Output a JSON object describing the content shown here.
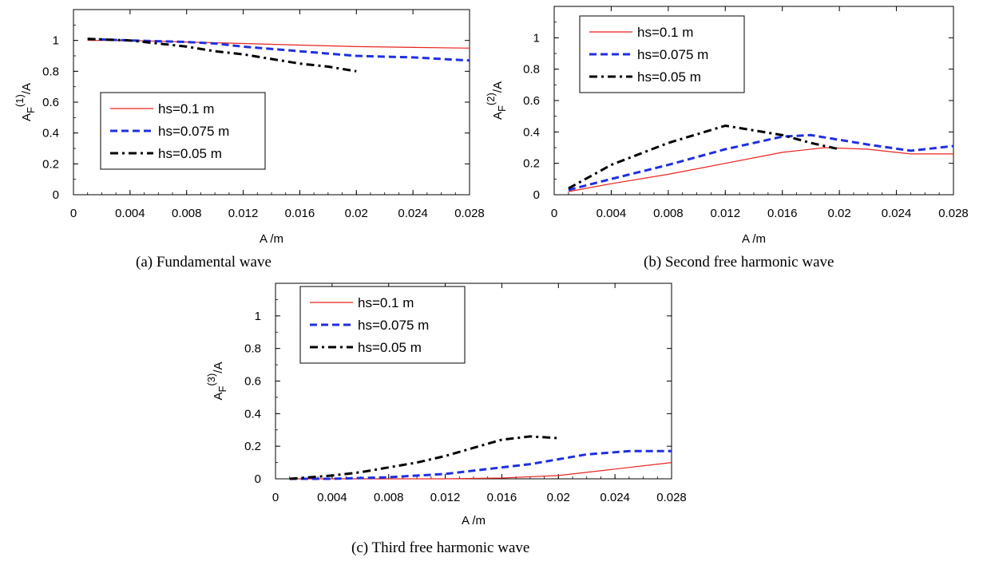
{
  "chart_data": [
    {
      "type": "line",
      "caption": "(a)   Fundamental wave",
      "xlabel": "A /m",
      "ylabel": {
        "main": "A",
        "sub": "F",
        "sup": "(1)",
        "tail": "/A"
      },
      "xlim": [
        0,
        0.028
      ],
      "ylim": [
        0,
        1.2
      ],
      "xticks": [
        "0",
        "0.004",
        "0.008",
        "0.012",
        "0.016",
        "0.02",
        "0.024",
        "0.028"
      ],
      "yticks": [
        "0",
        "0.2",
        "0.4",
        "0.6",
        "0.8",
        "1"
      ],
      "grid": false,
      "legend_position": "middle-left",
      "series": [
        {
          "name": "hs=0.1 m",
          "color": "#e8231f",
          "style": "solid",
          "x": [
            0.001,
            0.004,
            0.008,
            0.012,
            0.016,
            0.02,
            0.024,
            0.028
          ],
          "y": [
            1.0,
            1.0,
            0.99,
            0.98,
            0.97,
            0.96,
            0.955,
            0.95
          ]
        },
        {
          "name": "hs=0.075 m",
          "color": "#1f2fe0",
          "style": "dashed",
          "x": [
            0.001,
            0.004,
            0.008,
            0.01,
            0.012,
            0.016,
            0.02,
            0.024,
            0.028
          ],
          "y": [
            1.01,
            1.0,
            0.99,
            0.98,
            0.96,
            0.93,
            0.9,
            0.89,
            0.87
          ]
        },
        {
          "name": "hs=0.05 m",
          "color": "#000000",
          "style": "dashdot",
          "x": [
            0.001,
            0.004,
            0.006,
            0.008,
            0.01,
            0.012,
            0.014,
            0.016,
            0.018,
            0.02
          ],
          "y": [
            1.01,
            1.0,
            0.98,
            0.96,
            0.93,
            0.91,
            0.88,
            0.85,
            0.83,
            0.8
          ]
        }
      ]
    },
    {
      "type": "line",
      "caption": "(b) Second free harmonic wave",
      "xlabel": "A /m",
      "ylabel": {
        "main": "A",
        "sub": "F",
        "sup": "(2)",
        "tail": "/A"
      },
      "xlim": [
        0,
        0.028
      ],
      "ylim": [
        0,
        1.2
      ],
      "xticks": [
        "0",
        "0.004",
        "0.008",
        "0.012",
        "0.016",
        "0.02",
        "0.024",
        "0.028"
      ],
      "yticks": [
        "0",
        "0.2",
        "0.4",
        "0.6",
        "0.8",
        "1"
      ],
      "grid": false,
      "legend_position": "top-left",
      "series": [
        {
          "name": "hs=0.1 m",
          "color": "#e8231f",
          "style": "solid",
          "x": [
            0.001,
            0.004,
            0.008,
            0.012,
            0.016,
            0.019,
            0.022,
            0.025,
            0.028
          ],
          "y": [
            0.02,
            0.07,
            0.13,
            0.2,
            0.27,
            0.3,
            0.29,
            0.26,
            0.26
          ]
        },
        {
          "name": "hs=0.075 m",
          "color": "#1f2fe0",
          "style": "dashed",
          "x": [
            0.001,
            0.004,
            0.008,
            0.012,
            0.016,
            0.018,
            0.02,
            0.022,
            0.025,
            0.028
          ],
          "y": [
            0.03,
            0.1,
            0.19,
            0.29,
            0.37,
            0.38,
            0.35,
            0.32,
            0.28,
            0.31
          ]
        },
        {
          "name": "hs=0.05 m",
          "color": "#000000",
          "style": "dashdot",
          "x": [
            0.001,
            0.004,
            0.008,
            0.012,
            0.016,
            0.018,
            0.02
          ],
          "y": [
            0.04,
            0.19,
            0.33,
            0.44,
            0.38,
            0.33,
            0.29
          ]
        }
      ]
    },
    {
      "type": "line",
      "caption": "(c) Third free harmonic wave",
      "xlabel": "A /m",
      "ylabel": {
        "main": "A",
        "sub": "F",
        "sup": "(3)",
        "tail": "/A"
      },
      "xlim": [
        0,
        0.028
      ],
      "ylim": [
        0,
        1.2
      ],
      "xticks": [
        "0",
        "0.004",
        "0.008",
        "0.012",
        "0.016",
        "0.02",
        "0.024",
        "0.028"
      ],
      "yticks": [
        "0",
        "0.2",
        "0.4",
        "0.6",
        "0.8",
        "1"
      ],
      "grid": false,
      "legend_position": "top-left",
      "series": [
        {
          "name": "hs=0.1 m",
          "color": "#e8231f",
          "style": "solid",
          "x": [
            0.001,
            0.004,
            0.008,
            0.012,
            0.016,
            0.02,
            0.024,
            0.028
          ],
          "y": [
            0.0,
            0.0,
            0.0,
            0.0,
            0.005,
            0.02,
            0.06,
            0.1
          ]
        },
        {
          "name": "hs=0.075 m",
          "color": "#1f2fe0",
          "style": "dashed",
          "x": [
            0.001,
            0.004,
            0.008,
            0.012,
            0.016,
            0.018,
            0.02,
            0.022,
            0.025,
            0.028
          ],
          "y": [
            0.0,
            0.0,
            0.01,
            0.03,
            0.07,
            0.09,
            0.12,
            0.15,
            0.17,
            0.17
          ]
        },
        {
          "name": "hs=0.05 m",
          "color": "#000000",
          "style": "dashdot",
          "x": [
            0.001,
            0.004,
            0.006,
            0.008,
            0.01,
            0.012,
            0.014,
            0.016,
            0.018,
            0.02
          ],
          "y": [
            0.0,
            0.02,
            0.04,
            0.07,
            0.1,
            0.14,
            0.19,
            0.24,
            0.26,
            0.25
          ]
        }
      ]
    }
  ]
}
